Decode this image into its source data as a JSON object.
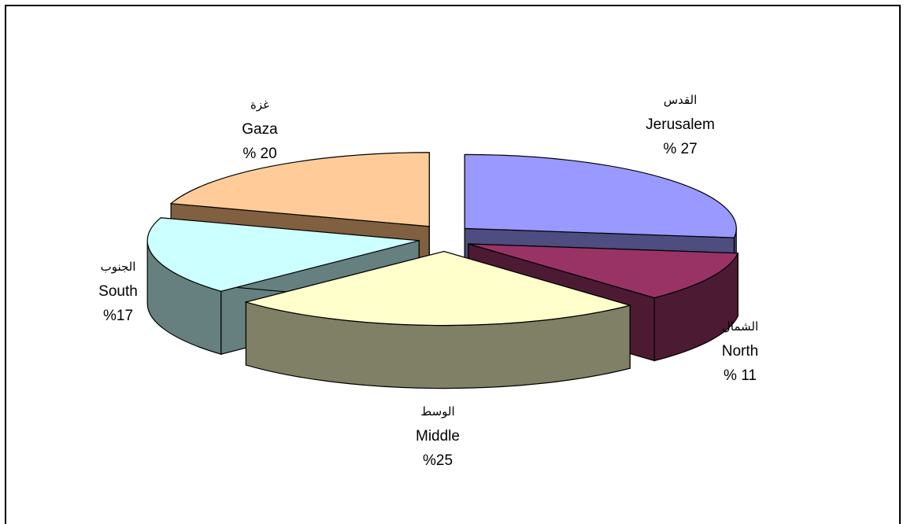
{
  "chart_data": {
    "type": "pie",
    "style": "3d-exploded",
    "legend": "none",
    "slices": [
      {
        "ar": "القدس",
        "en": "Jerusalem",
        "pct_label": "% 27",
        "value": 27,
        "top_color": "#9999ff",
        "side_color": "#4d4d80"
      },
      {
        "ar": "الشمال",
        "en": "North",
        "pct_label": "% 11",
        "value": 11,
        "top_color": "#993366",
        "side_color": "#4d1a33"
      },
      {
        "ar": "الوسط",
        "en": "Middle",
        "pct_label": "%25",
        "value": 25,
        "top_color": "#ffffcc",
        "side_color": "#808066"
      },
      {
        "ar": "الجنوب",
        "en": "South",
        "pct_label": "%17",
        "value": 17,
        "top_color": "#ccffff",
        "side_color": "#668080"
      },
      {
        "ar": "غزة",
        "en": "Gaza",
        "pct_label": "% 20",
        "value": 20,
        "top_color": "#ffcc99",
        "side_color": "#806040"
      }
    ]
  }
}
